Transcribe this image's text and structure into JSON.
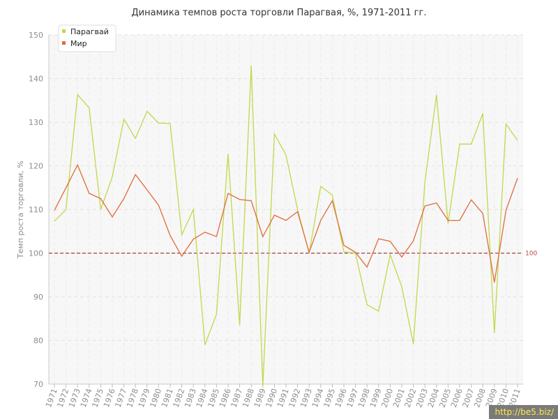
{
  "chart_data": {
    "type": "line",
    "title": "Динамика темпов роста торговли Парагвая, %, 1971-2011 гг.",
    "xlabel": "",
    "ylabel": "Темп роста торговли, %",
    "ylim": [
      70,
      150
    ],
    "yticks": [
      70,
      80,
      90,
      100,
      110,
      120,
      130,
      140,
      150
    ],
    "grid": true,
    "legend_position": "top-left",
    "categories": [
      "1971",
      "1972",
      "1973",
      "1974",
      "1975",
      "1976",
      "1977",
      "1978",
      "1979",
      "1980",
      "1981",
      "1982",
      "1983",
      "1984",
      "1985",
      "1986",
      "1987",
      "1988",
      "1989",
      "1990",
      "1991",
      "1992",
      "1993",
      "1994",
      "1995",
      "1996",
      "1997",
      "1998",
      "1999",
      "2000",
      "2001",
      "2002",
      "2003",
      "2004",
      "2005",
      "2006",
      "2007",
      "2008",
      "2009",
      "2010",
      "2011"
    ],
    "series": [
      {
        "name": "Парагвай",
        "color": "#c0d84a",
        "values": [
          107.3,
          110.0,
          136.3,
          133.3,
          110.0,
          117.5,
          130.7,
          126.3,
          132.5,
          129.8,
          129.7,
          104.2,
          110.0,
          79.0,
          86.0,
          122.8,
          83.5,
          143.0,
          69.5,
          127.3,
          122.5,
          110.0,
          100.0,
          115.3,
          113.3,
          100.3,
          100.0,
          88.2,
          86.7,
          99.7,
          92.3,
          79.2,
          116.3,
          136.3,
          106.8,
          125.0,
          125.0,
          132.0,
          81.7,
          129.6,
          125.8
        ]
      },
      {
        "name": "Мир",
        "color": "#e06a3a",
        "values": [
          109.8,
          115.0,
          120.2,
          113.7,
          112.5,
          108.3,
          112.5,
          118.0,
          114.5,
          111.0,
          104.0,
          99.3,
          103.2,
          104.8,
          103.8,
          113.7,
          112.3,
          112.0,
          103.8,
          108.7,
          107.5,
          109.5,
          100.2,
          107.5,
          112.0,
          101.8,
          100.2,
          96.8,
          103.3,
          102.7,
          99.1,
          102.8,
          110.8,
          111.5,
          107.5,
          107.5,
          112.2,
          109.1,
          93.3,
          109.8,
          117.2
        ]
      }
    ],
    "reference_line": {
      "value": 100,
      "label": "100",
      "color": "#a83c3c"
    }
  },
  "watermark": "http://be5.biz/"
}
